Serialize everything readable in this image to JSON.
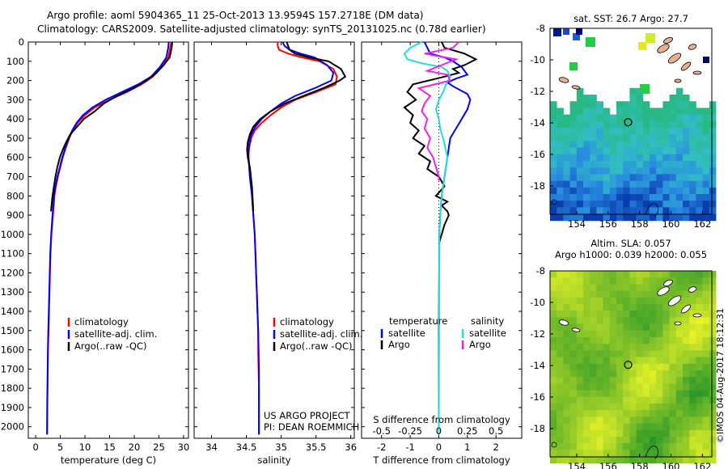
{
  "header": {
    "line1": "Argo profile: aoml 5904365_11 25-Oct-2013 13.9594S 157.2718E (DM data)",
    "line2": "Climatology: CARS2009. Satellite-adjusted climatology: synTS_20131025.nc (0.78d earlier)"
  },
  "colors": {
    "clim": "#ff0000",
    "sat": "#0000ff",
    "argo": "#000000",
    "sat_sal": "#22dddd",
    "argo_sal": "#ee22ee"
  },
  "chart_data": [
    {
      "type": "line",
      "id": "temperature",
      "xlabel": "temperature (deg C)",
      "xlim": [
        -1.5,
        31
      ],
      "ylim": [
        0,
        2060
      ],
      "xticks": [
        0,
        5,
        10,
        15,
        20,
        25,
        30
      ],
      "xticklabels": [
        "0",
        "5",
        "10",
        "15",
        "20",
        "25",
        "30"
      ],
      "yticks": [
        0,
        100,
        200,
        300,
        400,
        500,
        600,
        700,
        800,
        900,
        1000,
        1100,
        1200,
        1300,
        1400,
        1500,
        1600,
        1700,
        1800,
        1900,
        2000
      ],
      "yticklabels": [
        "0",
        "100",
        "200",
        "300",
        "400",
        "500",
        "600",
        "700",
        "800",
        "900",
        "1000",
        "1100",
        "1200",
        "1300",
        "1400",
        "1500",
        "1600",
        "1700",
        "1800",
        "1900",
        "2000"
      ],
      "legend": [
        "climatology",
        "satellite-adj. clim.",
        "Argo(..raw -QC)"
      ],
      "legend_loc": "lower-center",
      "series": [
        {
          "name": "climatology",
          "color": "red",
          "x": [
            27.5,
            27.3,
            26.9,
            25.5,
            23.8,
            21.5,
            18.5,
            15,
            12,
            10,
            8.5,
            7.5,
            6.8,
            6.1,
            5.5,
            5,
            4.5,
            4.1,
            3.8,
            3.5,
            3.2,
            3,
            2.9,
            2.8,
            2.7,
            2.6,
            2.5,
            2.45,
            2.4,
            2.35,
            2.3
          ],
          "y": [
            0,
            30,
            80,
            130,
            180,
            220,
            260,
            300,
            340,
            380,
            420,
            460,
            500,
            550,
            600,
            650,
            700,
            750,
            800,
            900,
            1000,
            1100,
            1200,
            1300,
            1400,
            1500,
            1600,
            1700,
            1800,
            1900,
            2040
          ]
        },
        {
          "name": "satellite-adj. clim.",
          "color": "blue",
          "x": [
            27.0,
            26.9,
            26.5,
            25.2,
            23.4,
            20.8,
            17.5,
            14.2,
            11.5,
            9.6,
            8.3,
            7.4,
            6.7,
            6.0,
            5.4,
            4.9,
            4.4,
            4.0,
            3.7,
            3.4,
            3.15,
            2.95,
            2.85,
            2.75,
            2.65,
            2.55,
            2.48,
            2.42,
            2.38,
            2.33,
            2.3
          ],
          "y": [
            0,
            30,
            80,
            130,
            180,
            220,
            260,
            300,
            340,
            380,
            420,
            460,
            500,
            550,
            600,
            650,
            700,
            750,
            800,
            900,
            1000,
            1100,
            1200,
            1300,
            1400,
            1500,
            1600,
            1700,
            1800,
            1900,
            2040
          ]
        },
        {
          "name": "Argo(..raw -QC)",
          "color": "black",
          "x": [
            27.7,
            27.6,
            27.2,
            26.0,
            24.5,
            22.5,
            19.8,
            16.5,
            13.8,
            12.0,
            9.8,
            8.4,
            7.0,
            6.2,
            5.5,
            4.9,
            4.4,
            4.0,
            3.7,
            3.4,
            3.1
          ],
          "y": [
            0,
            30,
            80,
            120,
            160,
            200,
            240,
            280,
            320,
            360,
            400,
            440,
            480,
            520,
            560,
            600,
            650,
            700,
            750,
            800,
            880
          ]
        }
      ]
    },
    {
      "type": "line",
      "id": "salinity",
      "xlabel": "salinity",
      "xlim": [
        33.75,
        36.05
      ],
      "ylim": [
        0,
        2060
      ],
      "xticks": [
        34,
        34.5,
        35,
        35.5,
        36
      ],
      "xticklabels": [
        "34",
        "34.5",
        "35",
        "35.5",
        "36"
      ],
      "legend": [
        "climatology",
        "satellite-adj. clim.",
        "Argo(..raw -QC)"
      ],
      "legend_loc": "lower-right",
      "annotation": [
        "US ARGO PROJECT",
        "PI: DEAN ROEMMICH"
      ],
      "series": [
        {
          "name": "climatology",
          "color": "red",
          "x": [
            34.95,
            34.95,
            34.97,
            35.1,
            35.3,
            35.55,
            35.75,
            35.8,
            35.78,
            35.5,
            35.2,
            35.0,
            34.85,
            34.72,
            34.62,
            34.57,
            34.54,
            34.53,
            34.55,
            34.58,
            34.6,
            34.62,
            34.63,
            34.64,
            34.65,
            34.66,
            34.67,
            34.67,
            34.68,
            34.68
          ],
          "y": [
            0,
            20,
            40,
            60,
            80,
            100,
            140,
            180,
            220,
            260,
            300,
            340,
            380,
            420,
            460,
            500,
            550,
            600,
            700,
            800,
            900,
            1000,
            1100,
            1200,
            1300,
            1400,
            1500,
            1600,
            1800,
            2040
          ]
        },
        {
          "name": "satellite-adj. clim.",
          "color": "blue",
          "x": [
            35.02,
            35.05,
            35.12,
            35.28,
            35.48,
            35.66,
            35.75,
            35.72,
            35.48,
            35.2,
            35.0,
            34.85,
            34.72,
            34.63,
            34.57,
            34.54,
            34.53,
            34.55,
            34.58,
            34.6,
            34.62,
            34.63,
            34.64,
            34.65,
            34.66,
            34.67,
            34.68,
            34.68
          ],
          "y": [
            0,
            20,
            40,
            60,
            80,
            120,
            160,
            200,
            240,
            280,
            320,
            360,
            400,
            440,
            480,
            530,
            580,
            700,
            800,
            900,
            1000,
            1100,
            1200,
            1300,
            1400,
            1500,
            1700,
            2040
          ]
        },
        {
          "name": "Argo(..raw -QC)",
          "color": "black",
          "x": [
            35.08,
            35.1,
            35.12,
            35.2,
            35.4,
            35.68,
            35.86,
            35.92,
            35.84,
            35.6,
            35.32,
            35.05,
            34.85,
            34.7,
            34.6,
            34.55,
            34.52,
            34.51,
            34.52,
            34.55,
            34.58,
            34.6
          ],
          "y": [
            0,
            20,
            40,
            60,
            80,
            100,
            140,
            180,
            200,
            240,
            280,
            320,
            360,
            400,
            440,
            480,
            520,
            560,
            600,
            650,
            750,
            880
          ]
        }
      ]
    },
    {
      "type": "line",
      "id": "difference",
      "xlabel_top": "S difference from climatology",
      "xlabel": "T difference from climatology",
      "xlim": [
        -2.7,
        2.9
      ],
      "ylim": [
        0,
        2060
      ],
      "xticks": [
        -2,
        -1,
        0,
        1,
        2
      ],
      "xticklabels": [
        "-2",
        "-1",
        "0",
        "1",
        "2"
      ],
      "sticks_pos": [
        -2,
        -1,
        0,
        1,
        2
      ],
      "sticks": [
        "-0.5",
        "-0.25",
        "0",
        "0.25",
        "0.5"
      ],
      "legend_t_title": "temperature",
      "legend_s_title": "salinity",
      "legend": [
        "satellite",
        "Argo",
        "satellite",
        "Argo"
      ],
      "series": [
        {
          "name": "T satellite",
          "color": "blue",
          "x": [
            -0.5,
            -0.4,
            -0.3,
            0.2,
            0.5,
            0.8,
            0.9,
            1.0,
            0.6,
            0.3,
            0.5,
            1.0,
            1.1,
            1.0,
            0.8,
            0.6,
            0.4,
            0.3,
            0.2,
            0.1,
            0.05,
            0.02,
            0.0,
            0.0
          ],
          "y": [
            0,
            30,
            60,
            80,
            100,
            130,
            150,
            170,
            190,
            210,
            230,
            270,
            300,
            350,
            400,
            450,
            500,
            600,
            700,
            800,
            900,
            1000,
            1500,
            2040
          ]
        },
        {
          "name": "T Argo",
          "color": "black",
          "x": [
            0.1,
            0.2,
            0.9,
            1.3,
            0.9,
            0.5,
            0.7,
            0.2,
            -0.9,
            -1.1,
            -0.8,
            -1.2,
            -0.9,
            -1.0,
            -0.7,
            -0.9,
            -0.5,
            -0.7,
            -0.3,
            -0.4,
            0.0,
            0.2,
            -0.1,
            0.3,
            0.1,
            0.3,
            0.35,
            0.2,
            0.1,
            0.0
          ],
          "y": [
            0,
            30,
            60,
            90,
            120,
            140,
            160,
            180,
            220,
            260,
            300,
            340,
            380,
            420,
            460,
            500,
            540,
            580,
            620,
            660,
            700,
            750,
            800,
            830,
            850,
            880,
            900,
            950,
            1000,
            1050
          ]
        },
        {
          "name": "S satellite",
          "color": "cyan",
          "x": [
            -0.6,
            -1.0,
            -1.2,
            -1.1,
            -0.6,
            0.1,
            0.3,
            0.4,
            0.25,
            0.15,
            0.0,
            -0.1,
            0.0,
            0.05,
            0.15,
            0.3,
            0.2,
            0.1,
            0.05,
            0.02,
            0.0
          ],
          "y": [
            0,
            30,
            60,
            90,
            110,
            130,
            150,
            180,
            220,
            260,
            300,
            350,
            400,
            450,
            500,
            600,
            700,
            800,
            900,
            1000,
            2040
          ]
        },
        {
          "name": "S Argo",
          "color": "magenta",
          "x": [
            0.7,
            0.5,
            -0.5,
            0.6,
            0.1,
            -0.4,
            0.3,
            0.4,
            -0.7,
            -0.3,
            -0.5,
            -0.6,
            -0.4,
            -0.5,
            -0.3,
            -0.4,
            -0.2,
            -0.1,
            0.0,
            0.0
          ],
          "y": [
            0,
            30,
            60,
            90,
            120,
            150,
            170,
            200,
            240,
            280,
            320,
            360,
            400,
            450,
            500,
            550,
            600,
            650,
            700,
            720
          ]
        }
      ]
    },
    {
      "type": "heatmap",
      "id": "sst_map",
      "title": "sat. SST: 26.7  Argo: 27.7",
      "xlim": [
        152.3,
        162.6
      ],
      "ylim": [
        -19.8,
        -8
      ],
      "xticks": [
        154,
        156,
        158,
        160,
        162
      ],
      "yticks": [
        -8,
        -10,
        -12,
        -14,
        -16,
        -18
      ],
      "marker": {
        "lon": 157.27,
        "lat": -13.96
      }
    },
    {
      "type": "heatmap",
      "id": "sla_map",
      "title_line1": "Altim. SLA: 0.057",
      "title_line2": "Argo h1000: 0.039 h2000: 0.055",
      "xlim": [
        152.3,
        162.6
      ],
      "ylim": [
        -19.8,
        -8
      ],
      "xticks": [
        154,
        156,
        158,
        160,
        162
      ],
      "yticks": [
        -8,
        -10,
        -12,
        -14,
        -16,
        -18
      ],
      "marker": {
        "lon": 157.27,
        "lat": -13.96
      }
    }
  ],
  "side_credit": "©IMOS 04-Aug-2017 18:12:31"
}
